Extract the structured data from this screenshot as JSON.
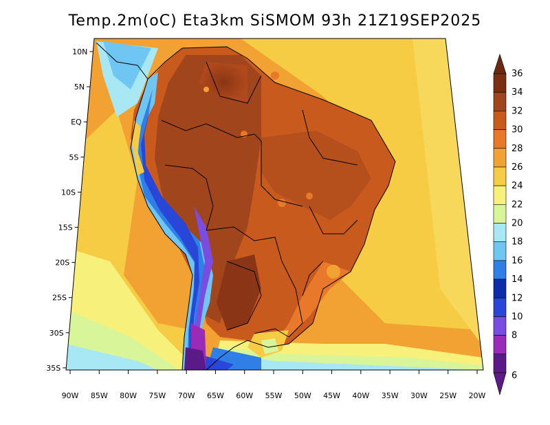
{
  "title": "Temp.2m(oC) Eta3km SiSMOM 93h 21Z19SEP2025",
  "lat_labels": [
    "10N",
    "5N",
    "EQ",
    "5S",
    "10S",
    "15S",
    "20S",
    "25S",
    "30S",
    "35S"
  ],
  "lon_labels": [
    "90W",
    "85W",
    "80W",
    "75W",
    "70W",
    "65W",
    "60W",
    "55W",
    "50W",
    "45W",
    "40W",
    "35W",
    "30W",
    "25W",
    "20W"
  ],
  "colorbar": {
    "labels": [
      "36",
      "34",
      "32",
      "30",
      "28",
      "26",
      "24",
      "22",
      "20",
      "18",
      "16",
      "14",
      "12",
      "10",
      "8",
      "6"
    ],
    "colors": [
      "#7a2e12",
      "#a0451c",
      "#c85a1e",
      "#e8782a",
      "#f2a232",
      "#f7cc45",
      "#f7f07a",
      "#d8f59a",
      "#a8e8f5",
      "#6fc6f2",
      "#2f7fe6",
      "#0c2ca8",
      "#2846d8",
      "#7a4ce0",
      "#9a2bb8",
      "#5a1a88"
    ]
  }
}
